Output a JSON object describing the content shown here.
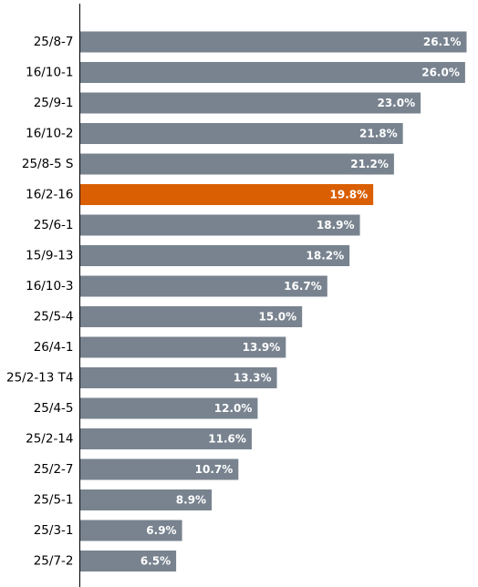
{
  "chart_data": {
    "type": "bar",
    "orientation": "horizontal",
    "title": "",
    "xlabel": "",
    "ylabel": "",
    "categories": [
      "25/8-7",
      "16/10-1",
      "25/9-1",
      "16/10-2",
      "25/8-5 S",
      "16/2-16",
      "25/6-1",
      "15/9-13",
      "16/10-3",
      "25/5-4",
      "26/4-1",
      "25/2-13 T4",
      "25/4-5",
      "25/2-14",
      "25/2-7",
      "25/5-1",
      "25/3-1",
      "25/7-2"
    ],
    "values": [
      26.1,
      26.0,
      23.0,
      21.8,
      21.2,
      19.8,
      18.9,
      18.2,
      16.7,
      15.0,
      13.9,
      13.3,
      12.0,
      11.6,
      10.7,
      8.9,
      6.9,
      6.5
    ],
    "value_labels": [
      "26.1%",
      "26.0%",
      "23.0%",
      "21.8%",
      "21.2%",
      "19.8%",
      "18.9%",
      "18.2%",
      "16.7%",
      "15.0%",
      "13.9%",
      "13.3%",
      "12.0%",
      "11.6%",
      "10.7%",
      "8.9%",
      "6.9%",
      "6.5%"
    ],
    "xlim": [
      0,
      26.1
    ],
    "grid": false,
    "legend": false,
    "highlight_category": "16/2-16",
    "colors": {
      "default": "#78838f",
      "highlight": "#d95f02",
      "axis": "#000000",
      "value_text": "#ffffff"
    }
  }
}
